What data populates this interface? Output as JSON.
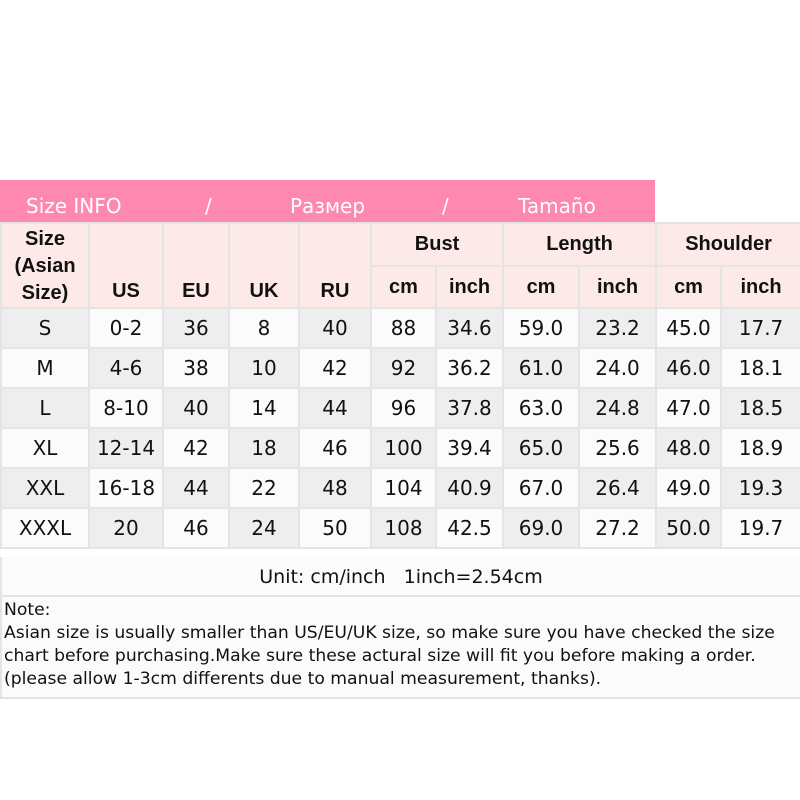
{
  "banner": {
    "en": "Size INFO",
    "sep": "/",
    "ru": "Размер",
    "es": "Tamaño"
  },
  "header": {
    "size": "Size (Asian Size)",
    "us": "US",
    "eu": "EU",
    "uk": "UK",
    "ru": "RU",
    "bust": "Bust",
    "length": "Length",
    "shoulder": "Shoulder",
    "cm": "cm",
    "inch": "inch"
  },
  "rows": [
    [
      "S",
      "0-2",
      "36",
      "8",
      "40",
      "88",
      "34.6",
      "59.0",
      "23.2",
      "45.0",
      "17.7"
    ],
    [
      "M",
      "4-6",
      "38",
      "10",
      "42",
      "92",
      "36.2",
      "61.0",
      "24.0",
      "46.0",
      "18.1"
    ],
    [
      "L",
      "8-10",
      "40",
      "14",
      "44",
      "96",
      "37.8",
      "63.0",
      "24.8",
      "47.0",
      "18.5"
    ],
    [
      "XL",
      "12-14",
      "42",
      "18",
      "46",
      "100",
      "39.4",
      "65.0",
      "25.6",
      "48.0",
      "18.9"
    ],
    [
      "XXL",
      "16-18",
      "44",
      "22",
      "48",
      "104",
      "40.9",
      "67.0",
      "26.4",
      "49.0",
      "19.3"
    ],
    [
      "XXXL",
      "20",
      "46",
      "24",
      "50",
      "108",
      "42.5",
      "69.0",
      "27.2",
      "50.0",
      "19.7"
    ]
  ],
  "unit": "Unit: cm/inch   1inch=2.54cm",
  "note": {
    "title": "Note:",
    "text": "Asian size is usually smaller than US/EU/UK size, so make sure you have checked the size chart before purchasing.Make sure these actural size will fit you before making a order.(please allow 1-3cm differents due to manual measurement, thanks)."
  },
  "colors": {
    "banner": "#fe88b0",
    "header_bg": "#fde9e8"
  }
}
